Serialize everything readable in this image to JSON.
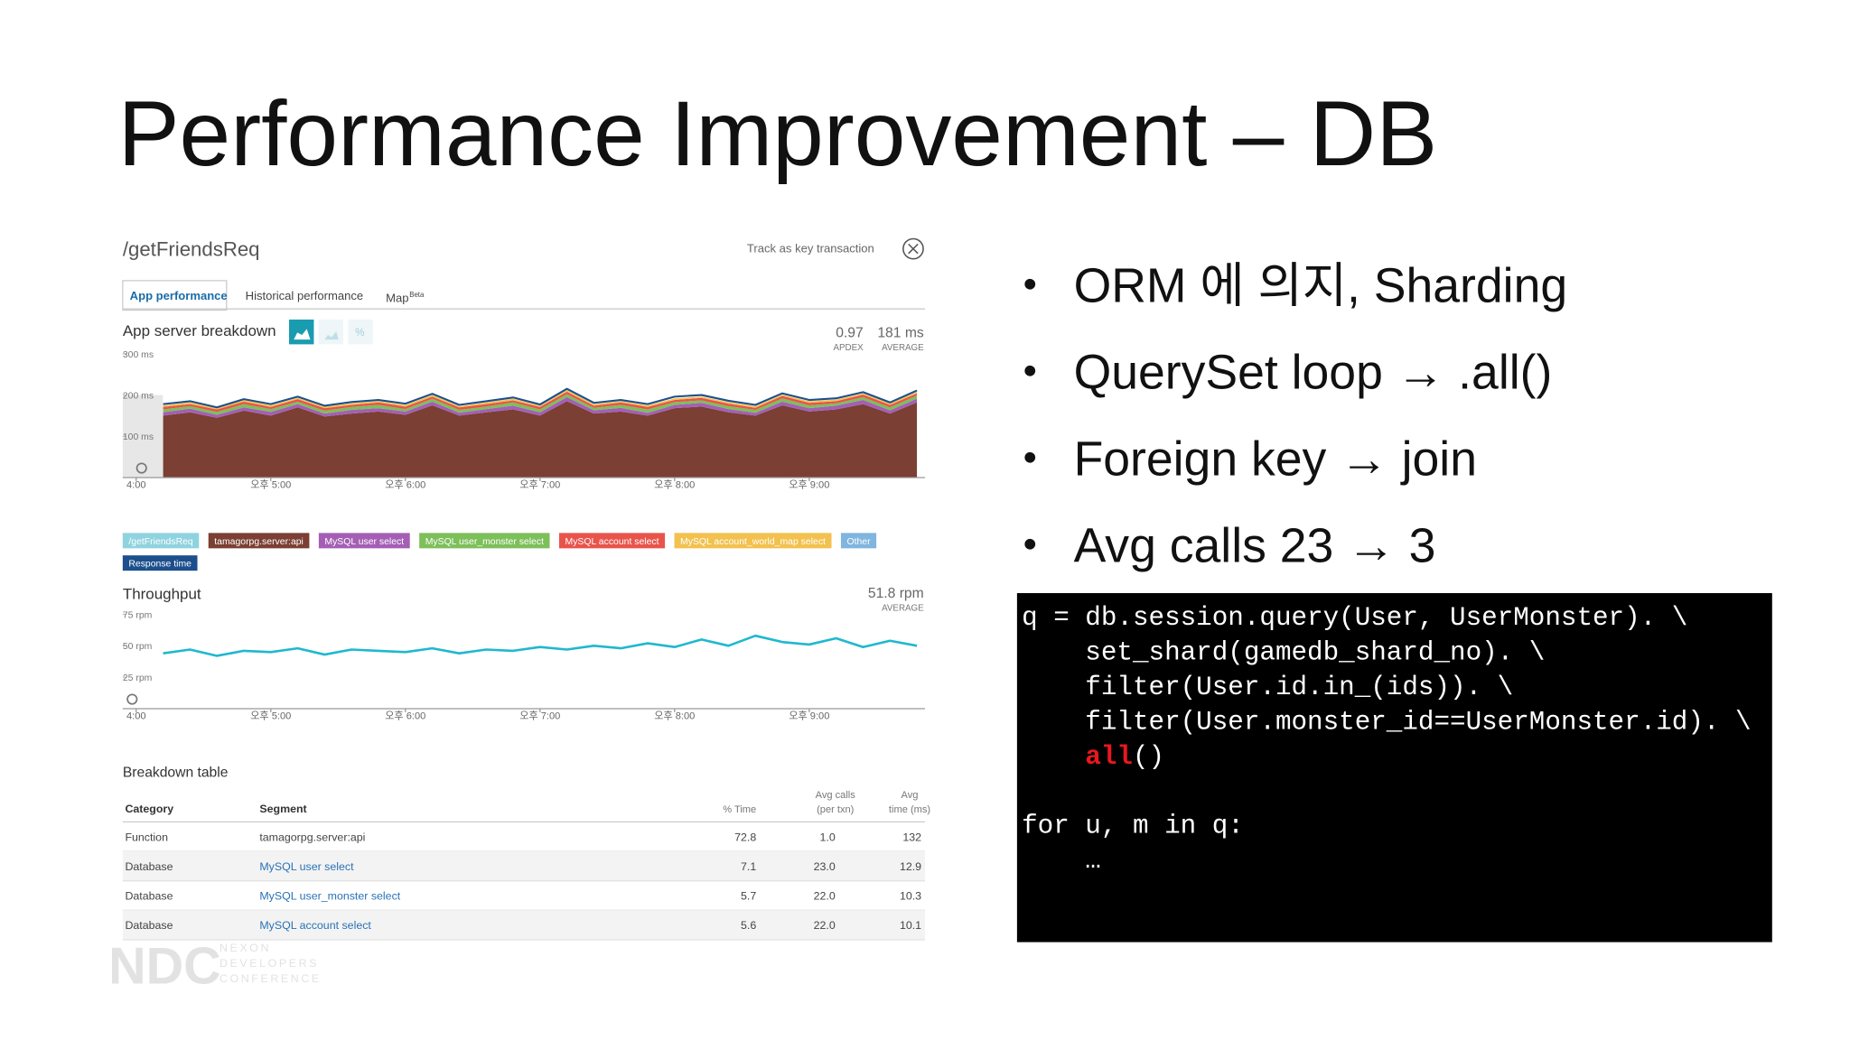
{
  "slide": {
    "title": "Performance Improvement – DB",
    "bullets": [
      "ORM 에 의지, Sharding",
      "QuerySet loop → .all()",
      "Foreign key → join",
      "Avg calls 23 → 3"
    ]
  },
  "panel": {
    "transaction": "/getFriendsReq",
    "key_action": "Track as key transaction",
    "tabs": [
      "App performance",
      "Historical performance",
      "Map"
    ],
    "tab_badge": "Beta"
  },
  "chart_data": [
    {
      "type": "area",
      "title": "App server breakdown",
      "metrics": [
        {
          "value": "0.97",
          "label": "APDEX"
        },
        {
          "value": "181 ms",
          "label": "AVERAGE"
        }
      ],
      "x": [
        4.2,
        4.4,
        4.6,
        4.8,
        5.0,
        5.2,
        5.4,
        5.6,
        5.8,
        6.0,
        6.2,
        6.4,
        6.6,
        6.8,
        7.0,
        7.2,
        7.4,
        7.6,
        7.8,
        8.0,
        8.2,
        8.4,
        8.6,
        8.8,
        9.0,
        9.2,
        9.4,
        9.6,
        9.8
      ],
      "xlim": [
        3.9,
        9.86
      ],
      "xticks": [
        {
          "value": 4,
          "label": "4:00"
        },
        {
          "value": 5,
          "label": "오후 5:00"
        },
        {
          "value": 6,
          "label": "오후 6:00"
        },
        {
          "value": 7,
          "label": "오후 7:00"
        },
        {
          "value": 8,
          "label": "오후 8:00"
        },
        {
          "value": 9,
          "label": "오후 9:00"
        }
      ],
      "ylim": [
        0,
        300
      ],
      "yticks": [
        {
          "value": 100,
          "label": "100 ms"
        },
        {
          "value": 200,
          "label": "200 ms"
        },
        {
          "value": 300,
          "label": "300 ms"
        }
      ],
      "series": [
        {
          "name": "/getFriendsReq",
          "color": "#8fd3df"
        },
        {
          "name": "tamagorpg.server:api",
          "color": "#7b3f33",
          "values": [
            150,
            158,
            145,
            162,
            150,
            170,
            148,
            155,
            160,
            152,
            175,
            150,
            158,
            165,
            150,
            185,
            155,
            160,
            150,
            168,
            172,
            158,
            150,
            175,
            160,
            165,
            178,
            155,
            182
          ]
        },
        {
          "name": "MySQL user select",
          "color": "#a45fb5",
          "values": [
            8,
            9,
            7,
            8,
            9,
            8,
            7,
            9,
            8,
            8,
            9,
            7,
            8,
            9,
            8,
            10,
            8,
            9,
            7,
            8,
            9,
            8,
            7,
            9,
            8,
            9,
            10,
            8,
            9
          ]
        },
        {
          "name": "MySQL user_monster select",
          "color": "#7dbf5a",
          "values": [
            7,
            6,
            7,
            8,
            7,
            6,
            7,
            7,
            8,
            6,
            7,
            7,
            6,
            8,
            7,
            7,
            6,
            7,
            8,
            7,
            6,
            7,
            7,
            8,
            7,
            6,
            7,
            7,
            8
          ]
        },
        {
          "name": "MySQL account select",
          "color": "#e8544b",
          "values": [
            6,
            5,
            6,
            6,
            5,
            6,
            6,
            5,
            6,
            6,
            5,
            6,
            6,
            5,
            6,
            6,
            5,
            6,
            6,
            5,
            6,
            6,
            5,
            6,
            6,
            5,
            6,
            6,
            5
          ]
        },
        {
          "name": "MySQL account_world_map select",
          "color": "#f2c14e",
          "values": [
            4,
            4,
            3,
            4,
            4,
            3,
            4,
            4,
            3,
            4,
            4,
            3,
            4,
            4,
            3,
            4,
            4,
            3,
            4,
            4,
            3,
            4,
            4,
            3,
            4,
            4,
            3,
            4,
            4
          ]
        },
        {
          "name": "Other",
          "color": "#7fb5de"
        },
        {
          "name": "Response time",
          "color": "#1c4f8c",
          "type": "line",
          "values": [
            178,
            185,
            170,
            190,
            178,
            196,
            174,
            183,
            188,
            179,
            203,
            176,
            185,
            194,
            177,
            215,
            181,
            188,
            178,
            196,
            200,
            186,
            176,
            204,
            188,
            192,
            207,
            182,
            211
          ]
        }
      ]
    },
    {
      "type": "line",
      "title": "Throughput",
      "metrics": [
        {
          "value": "51.8 rpm",
          "label": "AVERAGE"
        }
      ],
      "x": [
        4.2,
        4.4,
        4.6,
        4.8,
        5.0,
        5.2,
        5.4,
        5.6,
        5.8,
        6.0,
        6.2,
        6.4,
        6.6,
        6.8,
        7.0,
        7.2,
        7.4,
        7.6,
        7.8,
        8.0,
        8.2,
        8.4,
        8.6,
        8.8,
        9.0,
        9.2,
        9.4,
        9.6,
        9.8
      ],
      "xlim": [
        3.9,
        9.86
      ],
      "xticks": [
        {
          "value": 4,
          "label": "4:00"
        },
        {
          "value": 5,
          "label": "오후 5:00"
        },
        {
          "value": 6,
          "label": "오후 6:00"
        },
        {
          "value": 7,
          "label": "오후 7:00"
        },
        {
          "value": 8,
          "label": "오후 8:00"
        },
        {
          "value": 9,
          "label": "오후 9:00"
        }
      ],
      "ylim": [
        0,
        75
      ],
      "yticks": [
        {
          "value": 25,
          "label": "25 rpm"
        },
        {
          "value": 50,
          "label": "50 rpm"
        },
        {
          "value": 75,
          "label": "75 rpm"
        }
      ],
      "series": [
        {
          "color": "#1fb8cf",
          "values": [
            44,
            47,
            42,
            46,
            45,
            48,
            43,
            47,
            46,
            45,
            48,
            44,
            47,
            46,
            49,
            47,
            50,
            48,
            52,
            49,
            55,
            50,
            58,
            53,
            51,
            56,
            49,
            54,
            50
          ]
        }
      ]
    }
  ],
  "table": {
    "title": "Breakdown table",
    "columns": [
      "Category",
      "Segment",
      "% Time",
      [
        "Avg calls",
        "(per txn)"
      ],
      [
        "Avg",
        "time (ms)"
      ]
    ],
    "rows": [
      [
        "Function",
        "tamagorpg.server:api",
        "72.8",
        "1.0",
        "132"
      ],
      [
        "Database",
        "MySQL user select",
        "7.1",
        "23.0",
        "12.9"
      ],
      [
        "Database",
        "MySQL user_monster select",
        "5.7",
        "22.0",
        "10.3"
      ],
      [
        "Database",
        "MySQL account select",
        "5.6",
        "22.0",
        "10.1"
      ]
    ]
  },
  "code": {
    "lines": [
      [
        {
          "text": "q = db.session.query(User, UserMonster). \\"
        }
      ],
      [
        {
          "text": "    set_shard(gamedb_shard_no). \\"
        }
      ],
      [
        {
          "text": "    filter(User.id.in_(ids)). \\"
        }
      ],
      [
        {
          "text": "    filter(User.monster_id==UserMonster.id). \\"
        }
      ],
      [
        {
          "text": "    "
        },
        {
          "text": "all",
          "color": "#e8181c"
        },
        {
          "text": "()"
        }
      ],
      [],
      [
        {
          "text": "for u, m in q:"
        }
      ],
      [
        {
          "text": "    …"
        }
      ]
    ]
  },
  "logo": {
    "mark": "NDC",
    "lines": [
      "NEXON",
      "DEVELOPERS",
      "CONFERENCE"
    ]
  }
}
